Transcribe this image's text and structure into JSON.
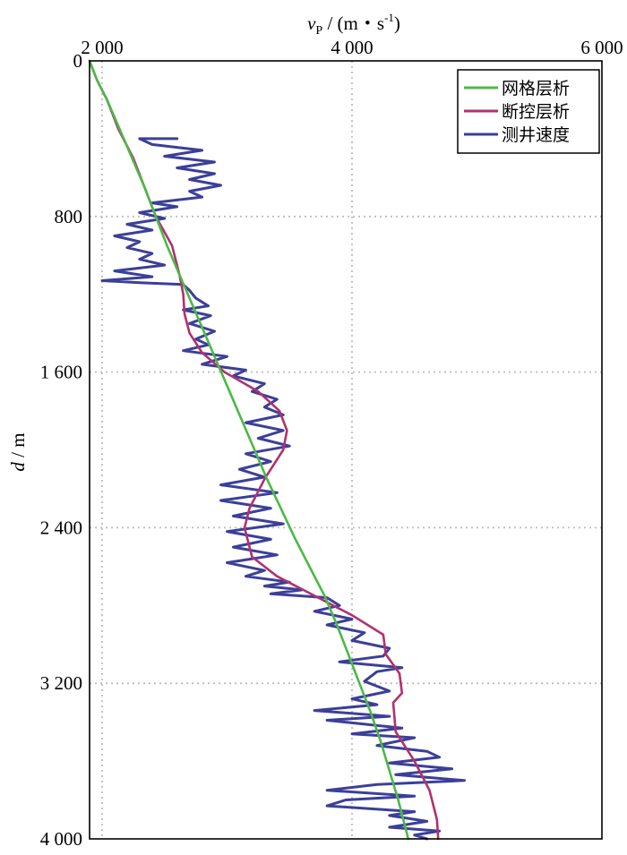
{
  "chart_data": {
    "type": "line",
    "orientation": "depth-profile",
    "x_axis": {
      "label_var": "v",
      "label_sub": "P",
      "label_unit_pre": " / (m・s",
      "label_unit_sup": "-1",
      "label_unit_post": ")",
      "position": "top",
      "range": [
        1900,
        6000
      ],
      "ticks": [
        2000,
        4000,
        6000
      ],
      "tick_labels": [
        "2 000",
        "4 000",
        "6 000"
      ]
    },
    "y_axis": {
      "label_var": "d",
      "label_unit": " / m",
      "inverted": true,
      "range": [
        0,
        4000
      ],
      "ticks": [
        0,
        800,
        1600,
        2400,
        3200,
        4000
      ],
      "tick_labels": [
        "0",
        "800",
        "1 600",
        "2 400",
        "3 200",
        "4 000"
      ]
    },
    "grid": "dotted",
    "legend": {
      "placement": "top-right",
      "entries": [
        "网格层析",
        "断控层析",
        "测井速度"
      ]
    },
    "colors": {
      "grid_tomo": "#4db848",
      "fault_tomo": "#b0316e",
      "well_log": "#3b3f99"
    },
    "series": [
      {
        "name": "网格层析",
        "points": [
          [
            1900,
            0
          ],
          [
            1960,
            100
          ],
          [
            2040,
            200
          ],
          [
            2140,
            350
          ],
          [
            2240,
            500
          ],
          [
            2340,
            650
          ],
          [
            2430,
            800
          ],
          [
            2520,
            950
          ],
          [
            2620,
            1100
          ],
          [
            2720,
            1250
          ],
          [
            2820,
            1400
          ],
          [
            2920,
            1550
          ],
          [
            3020,
            1700
          ],
          [
            3120,
            1850
          ],
          [
            3220,
            2000
          ],
          [
            3320,
            2150
          ],
          [
            3430,
            2300
          ],
          [
            3540,
            2450
          ],
          [
            3660,
            2600
          ],
          [
            3780,
            2750
          ],
          [
            3880,
            2900
          ],
          [
            3970,
            3050
          ],
          [
            4060,
            3200
          ],
          [
            4150,
            3350
          ],
          [
            4230,
            3500
          ],
          [
            4300,
            3650
          ],
          [
            4370,
            3800
          ],
          [
            4430,
            3950
          ],
          [
            4450,
            4000
          ]
        ]
      },
      {
        "name": "断控层析",
        "points": [
          [
            1900,
            0
          ],
          [
            1960,
            100
          ],
          [
            2040,
            200
          ],
          [
            2130,
            350
          ],
          [
            2250,
            500
          ],
          [
            2340,
            650
          ],
          [
            2430,
            800
          ],
          [
            2560,
            950
          ],
          [
            2620,
            1100
          ],
          [
            2650,
            1200
          ],
          [
            2660,
            1300
          ],
          [
            2700,
            1400
          ],
          [
            2800,
            1500
          ],
          [
            2980,
            1600
          ],
          [
            3250,
            1700
          ],
          [
            3420,
            1800
          ],
          [
            3480,
            1900
          ],
          [
            3450,
            2000
          ],
          [
            3300,
            2150
          ],
          [
            3180,
            2300
          ],
          [
            3140,
            2400
          ],
          [
            3200,
            2550
          ],
          [
            3400,
            2650
          ],
          [
            3700,
            2750
          ],
          [
            4000,
            2850
          ],
          [
            4250,
            2950
          ],
          [
            4270,
            3050
          ],
          [
            4380,
            3150
          ],
          [
            4400,
            3250
          ],
          [
            4330,
            3300
          ],
          [
            4350,
            3450
          ],
          [
            4500,
            3600
          ],
          [
            4620,
            3750
          ],
          [
            4680,
            3900
          ],
          [
            4690,
            4000
          ]
        ]
      },
      {
        "name": "测井速度",
        "points": [
          [
            2600,
            400
          ],
          [
            2300,
            400
          ],
          [
            2400,
            430
          ],
          [
            2800,
            460
          ],
          [
            2500,
            490
          ],
          [
            2900,
            520
          ],
          [
            2600,
            550
          ],
          [
            2900,
            580
          ],
          [
            2700,
            610
          ],
          [
            2950,
            640
          ],
          [
            2700,
            670
          ],
          [
            2800,
            700
          ],
          [
            2400,
            730
          ],
          [
            2600,
            750
          ],
          [
            2300,
            780
          ],
          [
            2500,
            810
          ],
          [
            2200,
            840
          ],
          [
            2400,
            870
          ],
          [
            2100,
            900
          ],
          [
            2300,
            930
          ],
          [
            2200,
            960
          ],
          [
            2400,
            990
          ],
          [
            2300,
            1020
          ],
          [
            2500,
            1050
          ],
          [
            2100,
            1080
          ],
          [
            2400,
            1110
          ],
          [
            2000,
            1130
          ],
          [
            2300,
            1140
          ],
          [
            2650,
            1150
          ],
          [
            2700,
            1180
          ],
          [
            2750,
            1220
          ],
          [
            2850,
            1260
          ],
          [
            2650,
            1280
          ],
          [
            2870,
            1310
          ],
          [
            2700,
            1350
          ],
          [
            2900,
            1390
          ],
          [
            2750,
            1430
          ],
          [
            2850,
            1460
          ],
          [
            2650,
            1490
          ],
          [
            3000,
            1520
          ],
          [
            2800,
            1560
          ],
          [
            3150,
            1590
          ],
          [
            3050,
            1620
          ],
          [
            3300,
            1660
          ],
          [
            3200,
            1700
          ],
          [
            3400,
            1740
          ],
          [
            3300,
            1780
          ],
          [
            3450,
            1820
          ],
          [
            3150,
            1860
          ],
          [
            3450,
            1900
          ],
          [
            3250,
            1940
          ],
          [
            3500,
            1980
          ],
          [
            3150,
            2020
          ],
          [
            3350,
            2060
          ],
          [
            3100,
            2100
          ],
          [
            3300,
            2140
          ],
          [
            2950,
            2180
          ],
          [
            3400,
            2220
          ],
          [
            2950,
            2260
          ],
          [
            3350,
            2300
          ],
          [
            3050,
            2340
          ],
          [
            3450,
            2380
          ],
          [
            3000,
            2420
          ],
          [
            3350,
            2460
          ],
          [
            3050,
            2500
          ],
          [
            3400,
            2540
          ],
          [
            3000,
            2580
          ],
          [
            3300,
            2620
          ],
          [
            3150,
            2650
          ],
          [
            3500,
            2680
          ],
          [
            3300,
            2700
          ],
          [
            3600,
            2720
          ],
          [
            3350,
            2740
          ],
          [
            3800,
            2760
          ],
          [
            3900,
            2800
          ],
          [
            3700,
            2830
          ],
          [
            4000,
            2870
          ],
          [
            3800,
            2900
          ],
          [
            4100,
            2940
          ],
          [
            4000,
            2980
          ],
          [
            4300,
            3020
          ],
          [
            4250,
            3060
          ],
          [
            3900,
            3090
          ],
          [
            4400,
            3120
          ],
          [
            4200,
            3140
          ],
          [
            4100,
            3190
          ],
          [
            4300,
            3240
          ],
          [
            4000,
            3280
          ],
          [
            4200,
            3310
          ],
          [
            3700,
            3340
          ],
          [
            4300,
            3370
          ],
          [
            3800,
            3390
          ],
          [
            4400,
            3430
          ],
          [
            4000,
            3460
          ],
          [
            4500,
            3480
          ],
          [
            4200,
            3520
          ],
          [
            4600,
            3550
          ],
          [
            4700,
            3580
          ],
          [
            4300,
            3610
          ],
          [
            4800,
            3640
          ],
          [
            4350,
            3670
          ],
          [
            4900,
            3700
          ],
          [
            4200,
            3720
          ],
          [
            3800,
            3750
          ],
          [
            4500,
            3780
          ],
          [
            3950,
            3800
          ],
          [
            3800,
            3830
          ],
          [
            4500,
            3860
          ],
          [
            4300,
            3880
          ],
          [
            4600,
            3910
          ],
          [
            4300,
            3940
          ],
          [
            4700,
            3960
          ],
          [
            4500,
            3980
          ],
          [
            4600,
            4000
          ]
        ]
      }
    ]
  }
}
